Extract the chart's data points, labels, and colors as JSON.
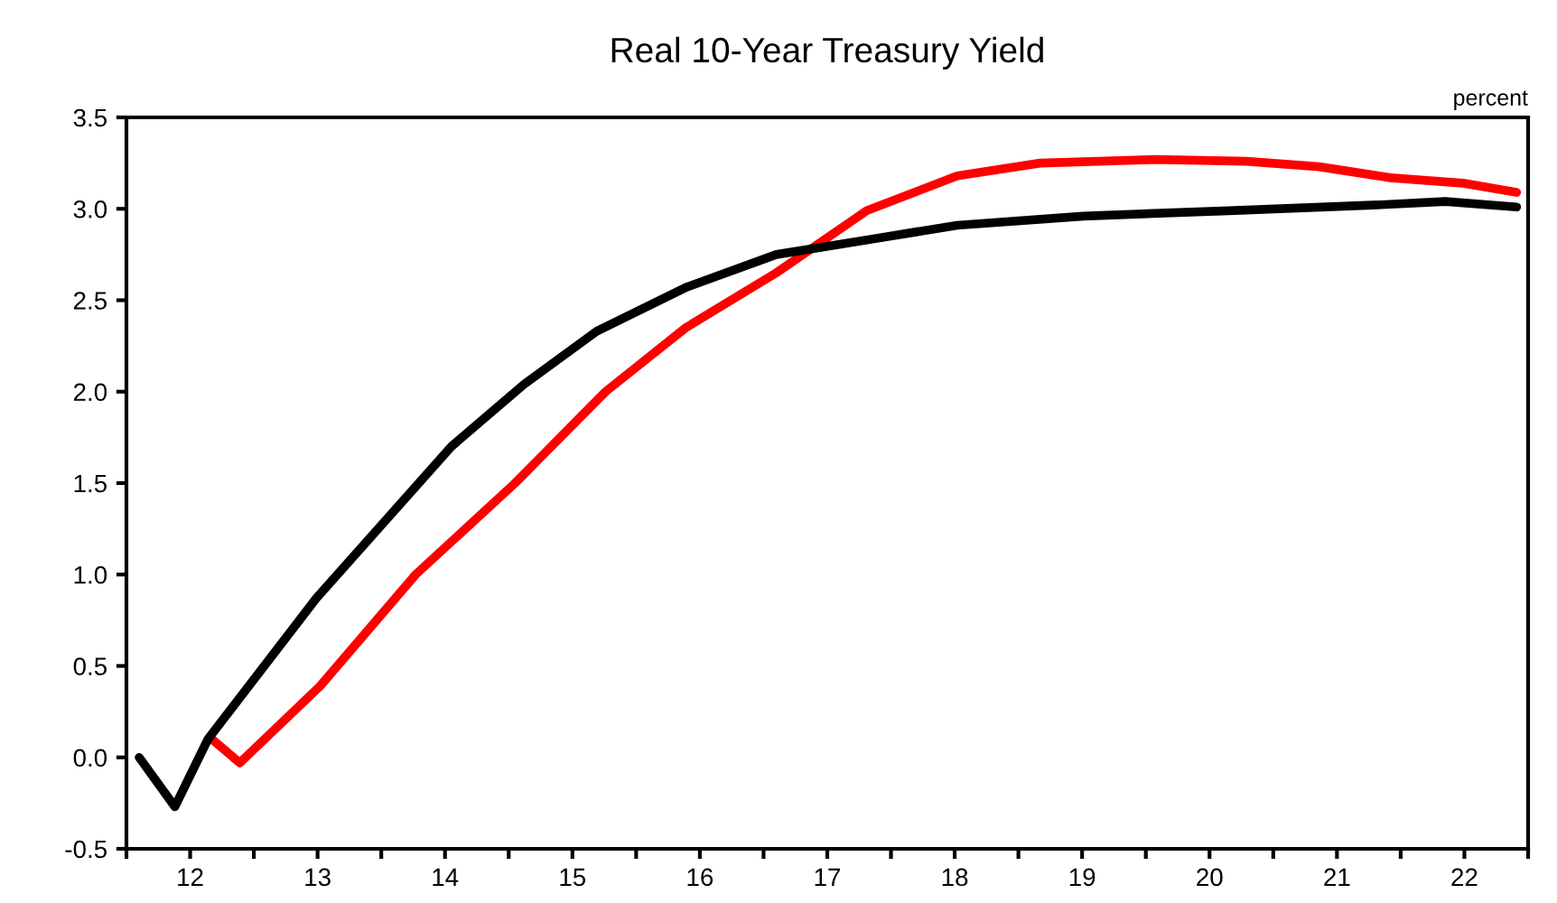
{
  "chart_data": {
    "type": "line",
    "title": "Real 10-Year Treasury Yield",
    "annotations": [
      "percent"
    ],
    "series": [
      {
        "color": "#ff0000",
        "x": [
          12.17,
          12.39,
          13.02,
          13.77,
          14.55,
          15.26,
          15.89,
          16.6,
          17.31,
          18.02,
          18.67,
          19.58,
          20.29,
          20.86,
          21.42,
          21.99,
          22.41
        ],
        "values": [
          0.1,
          -0.03,
          0.39,
          1.0,
          1.5,
          2.0,
          2.35,
          2.65,
          2.99,
          3.18,
          3.25,
          3.27,
          3.26,
          3.23,
          3.17,
          3.14,
          3.09
        ]
      },
      {
        "color": "#000000",
        "x": [
          11.6,
          11.88,
          12.14,
          12.99,
          14.05,
          14.62,
          15.19,
          15.89,
          16.6,
          17.31,
          18.02,
          19.01,
          20.15,
          21.28,
          21.85,
          22.41
        ],
        "values": [
          0.0,
          -0.27,
          0.1,
          0.87,
          1.7,
          2.04,
          2.33,
          2.57,
          2.75,
          2.83,
          2.91,
          2.96,
          2.99,
          3.02,
          3.04,
          3.01
        ]
      }
    ],
    "xlim": [
      11.5,
      22.5
    ],
    "xticks": [
      {
        "value": 11.5,
        "label": null
      },
      12,
      {
        "value": 12.5,
        "label": null
      },
      13,
      {
        "value": 13.5,
        "label": null
      },
      14,
      {
        "value": 14.5,
        "label": null
      },
      15,
      {
        "value": 15.5,
        "label": null
      },
      16,
      {
        "value": 16.5,
        "label": null
      },
      17,
      {
        "value": 17.5,
        "label": null
      },
      18,
      {
        "value": 18.5,
        "label": null
      },
      19,
      {
        "value": 19.5,
        "label": null
      },
      20,
      {
        "value": 20.5,
        "label": null
      },
      21,
      {
        "value": 21.5,
        "label": null
      },
      22,
      {
        "value": 22.5,
        "label": null
      }
    ],
    "ylim": [
      -0.5,
      3.5
    ],
    "yticks": [
      {
        "value": -0.5,
        "label": "-0.5"
      },
      {
        "value": 0,
        "label": "0.0"
      },
      {
        "value": 0.5,
        "label": "0.5"
      },
      {
        "value": 1,
        "label": "1.0"
      },
      {
        "value": 1.5,
        "label": "1.5"
      },
      {
        "value": 2,
        "label": "2.0"
      },
      {
        "value": 2.5,
        "label": "2.5"
      },
      {
        "value": 3,
        "label": "3.0"
      },
      {
        "value": 3.5,
        "label": "3.5"
      }
    ],
    "grid": false,
    "legend": false,
    "line_style": "solid",
    "marker": "none"
  }
}
